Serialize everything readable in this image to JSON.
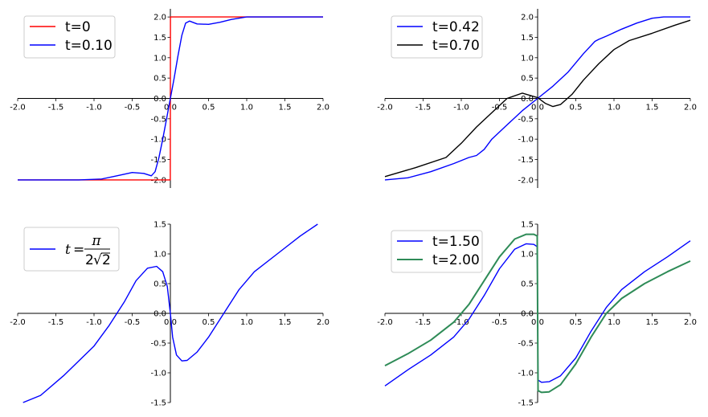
{
  "chart_data": [
    {
      "type": "line",
      "xlim": [
        -2,
        2
      ],
      "ylim": [
        -2.2,
        2.2
      ],
      "xticks": [
        "-2.0",
        "-1.5",
        "-1.0",
        "-0.5",
        "0.0",
        "0.5",
        "1.0",
        "1.5",
        "2.0"
      ],
      "yticks": [
        "-2.0",
        "-1.5",
        "-1.0",
        "-0.5",
        "0.0",
        "0.5",
        "1.0",
        "1.5",
        "2.0"
      ],
      "grid": false,
      "legend_position": "top-left",
      "series": [
        {
          "name": "t=0",
          "color": "#ff0000",
          "x": [
            -2.0,
            -0.001,
            0.001,
            2.0
          ],
          "y": [
            -2.0,
            -2.0,
            2.0,
            2.0
          ]
        },
        {
          "name": "t=0.10",
          "color": "#0000ff",
          "x": [
            -2.0,
            -1.2,
            -0.9,
            -0.7,
            -0.5,
            -0.35,
            -0.25,
            -0.2,
            -0.15,
            -0.1,
            -0.05,
            0.0,
            0.05,
            0.1,
            0.15,
            0.2,
            0.25,
            0.35,
            0.5,
            0.65,
            0.8,
            1.0,
            1.3,
            2.0
          ],
          "y": [
            -2.0,
            -2.0,
            -1.98,
            -1.9,
            -1.82,
            -1.84,
            -1.9,
            -1.8,
            -1.45,
            -1.0,
            -0.5,
            0.0,
            0.5,
            1.05,
            1.55,
            1.85,
            1.9,
            1.83,
            1.82,
            1.87,
            1.94,
            2.0,
            2.0,
            2.0
          ]
        }
      ]
    },
    {
      "type": "line",
      "xlim": [
        -2,
        2
      ],
      "ylim": [
        -2.2,
        2.2
      ],
      "xticks": [
        "-2.0",
        "-1.5",
        "-1.0",
        "-0.5",
        "0.0",
        "0.5",
        "1.0",
        "1.5",
        "2.0"
      ],
      "yticks": [
        "-2.0",
        "-1.5",
        "-1.0",
        "-0.5",
        "0.0",
        "0.5",
        "1.0",
        "1.5",
        "2.0"
      ],
      "grid": false,
      "legend_position": "top-left",
      "series": [
        {
          "name": "t=0.42",
          "color": "#0000ff",
          "x": [
            -2.0,
            -1.7,
            -1.4,
            -1.1,
            -0.9,
            -0.8,
            -0.7,
            -0.6,
            -0.4,
            -0.2,
            0.0,
            0.2,
            0.4,
            0.6,
            0.75,
            0.8,
            0.9,
            1.1,
            1.3,
            1.5,
            1.65,
            2.0
          ],
          "y": [
            -2.0,
            -1.95,
            -1.8,
            -1.6,
            -1.45,
            -1.4,
            -1.25,
            -1.0,
            -0.65,
            -0.3,
            0.0,
            0.3,
            0.65,
            1.1,
            1.4,
            1.45,
            1.53,
            1.7,
            1.85,
            1.97,
            2.0,
            2.0
          ]
        },
        {
          "name": "t=0.70",
          "color": "#000000",
          "x": [
            -2.0,
            -1.6,
            -1.2,
            -1.0,
            -0.8,
            -0.6,
            -0.4,
            -0.2,
            0.0,
            0.1,
            0.2,
            0.3,
            0.45,
            0.6,
            0.8,
            1.0,
            1.2,
            1.5,
            1.8,
            2.0
          ],
          "y": [
            -1.92,
            -1.7,
            -1.45,
            -1.1,
            -0.7,
            -0.35,
            0.0,
            0.13,
            0.02,
            -0.12,
            -0.2,
            -0.15,
            0.1,
            0.45,
            0.85,
            1.2,
            1.42,
            1.6,
            1.8,
            1.92
          ]
        }
      ]
    },
    {
      "type": "line",
      "xlim": [
        -2,
        2
      ],
      "ylim": [
        -1.5,
        1.5
      ],
      "xticks": [
        "-2.0",
        "-1.5",
        "-1.0",
        "-0.5",
        "0.0",
        "0.5",
        "1.0",
        "1.5",
        "2.0"
      ],
      "yticks": [
        "-1.5",
        "-1.0",
        "-0.5",
        "0.0",
        "0.5",
        "1.0",
        "1.5"
      ],
      "grid": false,
      "legend_position": "top-left",
      "series": [
        {
          "name": "t = π / 2√2",
          "color": "#0000ff",
          "x": [
            -1.93,
            -1.7,
            -1.4,
            -1.2,
            -1.0,
            -0.8,
            -0.6,
            -0.45,
            -0.3,
            -0.18,
            -0.1,
            -0.04,
            0.0,
            0.03,
            0.08,
            0.15,
            0.22,
            0.35,
            0.5,
            0.7,
            0.9,
            1.1,
            1.4,
            1.7,
            1.93
          ],
          "y": [
            -1.5,
            -1.38,
            -1.05,
            -0.8,
            -0.55,
            -0.2,
            0.2,
            0.55,
            0.76,
            0.79,
            0.7,
            0.45,
            0.0,
            -0.4,
            -0.7,
            -0.8,
            -0.79,
            -0.65,
            -0.4,
            0.0,
            0.4,
            0.7,
            1.0,
            1.3,
            1.5
          ]
        }
      ]
    },
    {
      "type": "line",
      "xlim": [
        -2,
        2
      ],
      "ylim": [
        -1.5,
        1.5
      ],
      "xticks": [
        "-2.0",
        "-1.5",
        "-1.0",
        "-0.5",
        "0.0",
        "0.5",
        "1.0",
        "1.5",
        "2.0"
      ],
      "yticks": [
        "-1.5",
        "-1.0",
        "-0.5",
        "0.0",
        "0.5",
        "1.0",
        "1.5"
      ],
      "grid": false,
      "legend_position": "top-left",
      "series": [
        {
          "name": "t=1.50",
          "color": "#0000ff",
          "x": [
            -2.0,
            -1.7,
            -1.4,
            -1.1,
            -0.9,
            -0.7,
            -0.5,
            -0.3,
            -0.15,
            -0.05,
            -0.005,
            0.005,
            0.05,
            0.15,
            0.3,
            0.5,
            0.7,
            0.9,
            1.1,
            1.4,
            1.7,
            2.0
          ],
          "y": [
            -1.22,
            -0.95,
            -0.7,
            -0.4,
            -0.1,
            0.3,
            0.75,
            1.08,
            1.17,
            1.16,
            1.12,
            -1.12,
            -1.16,
            -1.15,
            -1.05,
            -0.75,
            -0.3,
            0.1,
            0.4,
            0.7,
            0.95,
            1.22
          ]
        },
        {
          "name": "t=2.00",
          "color": "#2e8b57",
          "x": [
            -2.0,
            -1.7,
            -1.4,
            -1.1,
            -0.9,
            -0.7,
            -0.5,
            -0.3,
            -0.15,
            -0.05,
            -0.005,
            0.005,
            0.05,
            0.15,
            0.3,
            0.5,
            0.7,
            0.9,
            1.1,
            1.4,
            1.7,
            2.0
          ],
          "y": [
            -0.88,
            -0.68,
            -0.45,
            -0.15,
            0.15,
            0.55,
            0.95,
            1.25,
            1.33,
            1.33,
            1.3,
            -1.3,
            -1.33,
            -1.32,
            -1.2,
            -0.85,
            -0.4,
            0.0,
            0.25,
            0.5,
            0.7,
            0.88
          ]
        }
      ]
    }
  ]
}
